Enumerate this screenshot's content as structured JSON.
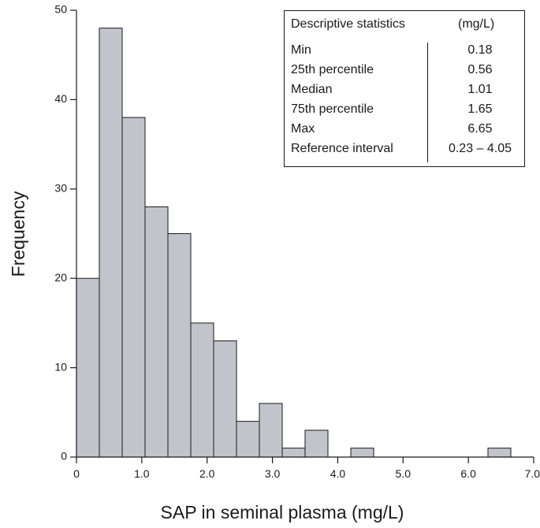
{
  "chart_data": {
    "type": "bar",
    "xlabel": "SAP in seminal plasma (mg/L)",
    "ylabel": "Frequency",
    "xlim": [
      0,
      7
    ],
    "ylim": [
      0,
      50
    ],
    "xticks": [
      "0",
      "1.0",
      "2.0",
      "3.0",
      "4.0",
      "5.0",
      "6.0",
      "7.0"
    ],
    "yticks": [
      "0",
      "10",
      "20",
      "30",
      "40",
      "50"
    ],
    "bin_width": 0.35,
    "bins": [
      {
        "x0": 0.0,
        "x1": 0.35,
        "value": 20
      },
      {
        "x0": 0.35,
        "x1": 0.7,
        "value": 48
      },
      {
        "x0": 0.7,
        "x1": 1.05,
        "value": 38
      },
      {
        "x0": 1.05,
        "x1": 1.4,
        "value": 28
      },
      {
        "x0": 1.4,
        "x1": 1.75,
        "value": 25
      },
      {
        "x0": 1.75,
        "x1": 2.1,
        "value": 15
      },
      {
        "x0": 2.1,
        "x1": 2.45,
        "value": 13
      },
      {
        "x0": 2.45,
        "x1": 2.8,
        "value": 4
      },
      {
        "x0": 2.8,
        "x1": 3.15,
        "value": 6
      },
      {
        "x0": 3.15,
        "x1": 3.5,
        "value": 1
      },
      {
        "x0": 3.5,
        "x1": 3.85,
        "value": 3
      },
      {
        "x0": 4.2,
        "x1": 4.55,
        "value": 1
      },
      {
        "x0": 6.3,
        "x1": 6.65,
        "value": 1
      }
    ],
    "grid": false
  },
  "stats_table": {
    "header_label": "Descriptive statistics",
    "header_unit": "(mg/L)",
    "rows": [
      {
        "label": "Min",
        "value": "0.18"
      },
      {
        "label": "25th percentile",
        "value": "0.56"
      },
      {
        "label": "Median",
        "value": "1.01"
      },
      {
        "label": "75th percentile",
        "value": "1.65"
      },
      {
        "label": "Max",
        "value": "6.65"
      },
      {
        "label": "Reference interval",
        "value": "0.23 – 4.05"
      }
    ]
  }
}
